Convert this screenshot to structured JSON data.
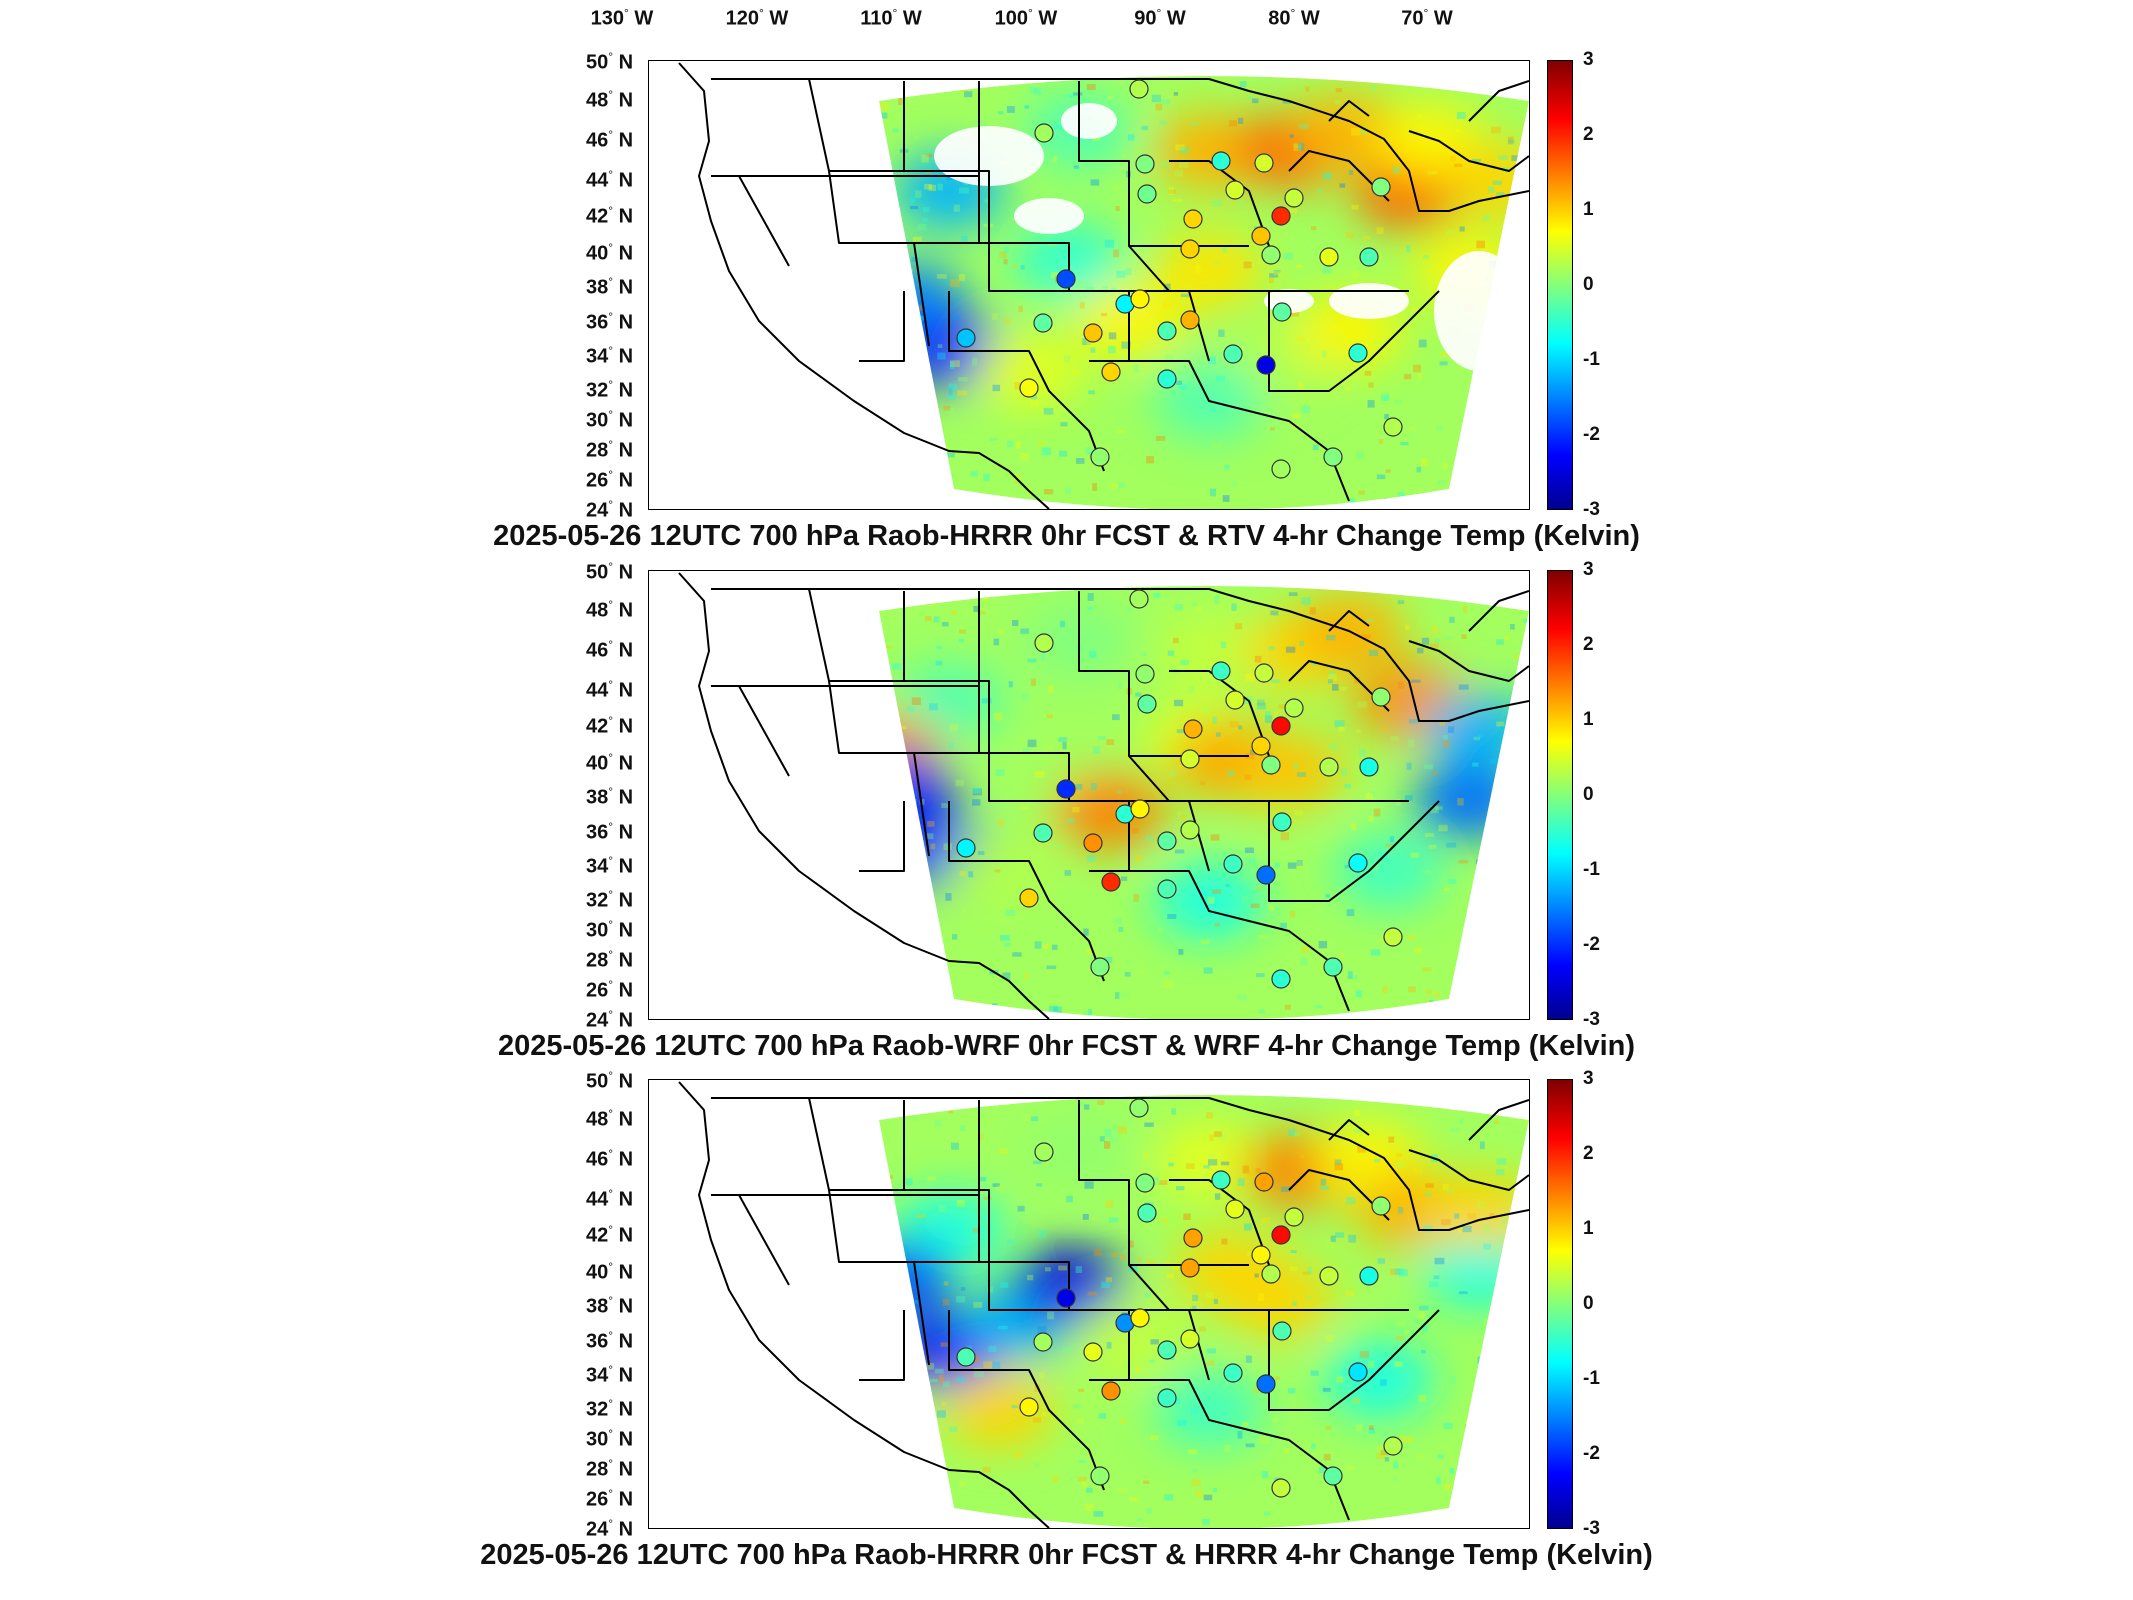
{
  "top_lon_labels": [
    "130",
    "120",
    "110",
    "100",
    "90",
    "80",
    "70"
  ],
  "lon_suffix": "W",
  "lat_labels": [
    "50",
    "48",
    "46",
    "44",
    "42",
    "40",
    "38",
    "36",
    "34",
    "32",
    "30",
    "28",
    "26",
    "24"
  ],
  "lat_suffix": "N",
  "colorbar": {
    "ticks": [
      "3",
      "2",
      "1",
      "0",
      "-1",
      "-2",
      "-3"
    ],
    "min": -3,
    "max": 3,
    "colormap": "jet"
  },
  "colors": {
    "dark_red": "#800000",
    "red": "#ff0000",
    "orange": "#ff8000",
    "yellow": "#ffff00",
    "cyan": "#00ffff",
    "blue": "#0000ff",
    "dark_blue": "#00008f"
  },
  "panels": [
    {
      "title": "2025-05-26 12UTC 700 hPa Raob-HRRR 0hr FCST & RTV 4-hr Change Temp (Kelvin)",
      "raob_values": [
        0.3,
        0.2,
        0.0,
        -0.5,
        0.5,
        -0.1,
        0.5,
        0.4,
        1.1,
        1.0,
        0.0,
        2.0,
        1.0,
        0.1,
        0.6,
        -0.3,
        -0.8,
        -1.8,
        0.8,
        1.1,
        -0.3,
        -0.2,
        -1.1,
        0.7,
        -0.5,
        1.0,
        -0.2,
        1.2,
        -0.3,
        -2.4,
        -0.5,
        0.3,
        0.1,
        0.2,
        0.0
      ]
    },
    {
      "title": "2025-05-26 12UTC 700 hPa Raob-WRF 0hr FCST & WRF 4-hr Change Temp (Kelvin)",
      "raob_values": [
        0.2,
        0.3,
        0.1,
        -0.4,
        0.4,
        -0.2,
        0.5,
        0.3,
        1.0,
        1.2,
        0.1,
        2.2,
        0.5,
        0.0,
        0.3,
        -0.6,
        -0.5,
        -2.0,
        0.8,
        1.4,
        -0.2,
        -0.3,
        -0.8,
        1.0,
        -0.3,
        2.0,
        -0.4,
        0.3,
        -0.4,
        -1.6,
        -0.7,
        0.4,
        0.0,
        -0.5,
        -0.3
      ]
    },
    {
      "title": "2025-05-26 12UTC 700 hPa Raob-HRRR 0hr FCST & HRRR 4-hr Change Temp (Kelvin)",
      "raob_values": [
        0.1,
        0.2,
        0.0,
        -0.4,
        1.3,
        -0.3,
        0.6,
        0.4,
        0.8,
        1.3,
        0.1,
        2.2,
        1.3,
        0.3,
        0.4,
        -0.6,
        -1.4,
        -2.4,
        0.8,
        0.6,
        -0.3,
        0.2,
        -0.3,
        0.8,
        -0.4,
        1.4,
        -0.3,
        0.5,
        -0.4,
        -1.6,
        -0.9,
        0.3,
        0.1,
        0.4,
        -0.2
      ]
    }
  ]
}
